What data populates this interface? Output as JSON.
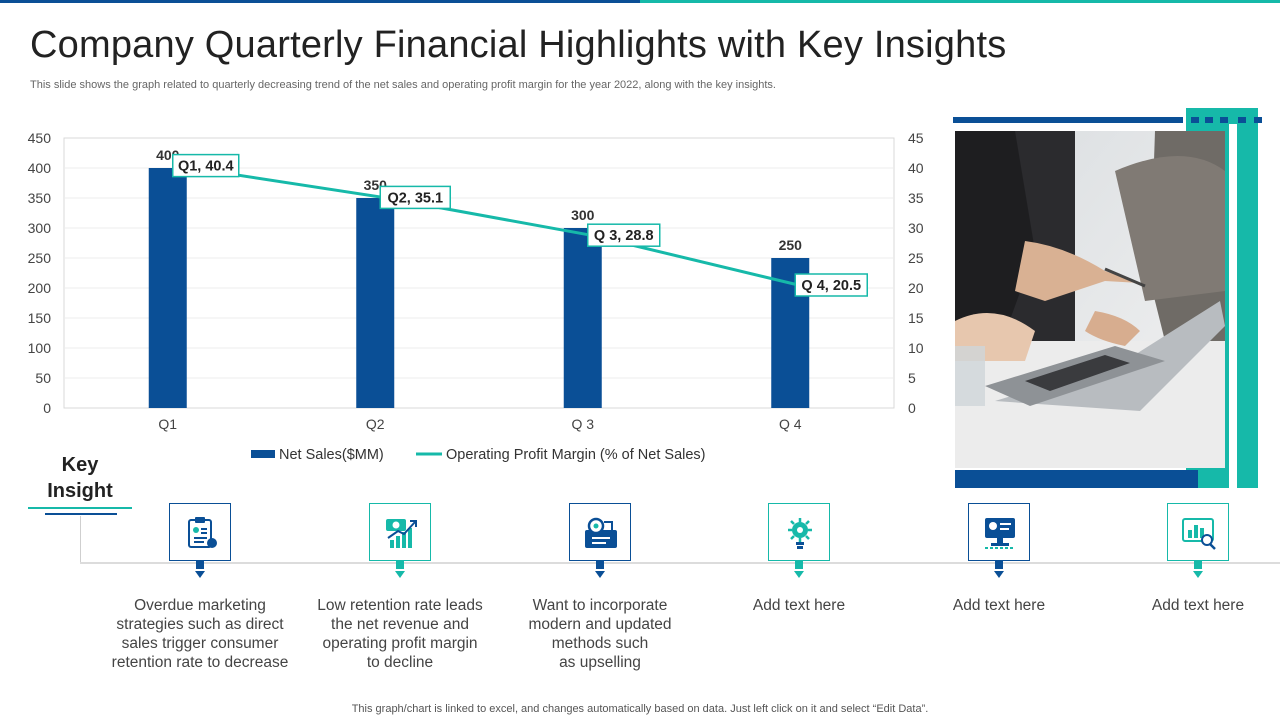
{
  "title": "Company Quarterly Financial Highlights with Key Insights",
  "subtitle": "This slide shows the graph related to quarterly decreasing trend of the net sales and operating profit margin for the year 2022, along with the key insights.",
  "colors": {
    "bar": "#0a4f96",
    "line": "#16b9a9",
    "accent_blue": "#0a4f96",
    "accent_teal": "#16b9a9"
  },
  "chart_data": {
    "type": "bar",
    "categories": [
      "Q1",
      "Q2",
      "Q 3",
      "Q 4"
    ],
    "series": [
      {
        "name": "Net Sales($MM)",
        "type": "bar",
        "axis": "left",
        "values": [
          400,
          350,
          300,
          250
        ],
        "labels": [
          "400",
          "350",
          "300",
          "250"
        ]
      },
      {
        "name": "Operating Profit Margin (% of Net Sales)",
        "type": "line",
        "axis": "right",
        "values": [
          40.4,
          35.1,
          28.8,
          20.5
        ],
        "labels": [
          "Q1, 40.4",
          "Q2, 35.1",
          "Q 3, 28.8",
          "Q 4, 20.5"
        ]
      }
    ],
    "y_left": {
      "ticks": [
        "0",
        "50",
        "100",
        "150",
        "200",
        "250",
        "300",
        "350",
        "400",
        "450"
      ],
      "ylim": [
        0,
        450
      ]
    },
    "y_right": {
      "ticks": [
        "0",
        "5",
        "10",
        "15",
        "20",
        "25",
        "30",
        "35",
        "40",
        "45"
      ],
      "ylim": [
        0,
        45
      ]
    },
    "grid": true,
    "legend_placement": "bottom"
  },
  "key_insight": {
    "label_line1": "Key",
    "label_line2": "Insight",
    "items": [
      {
        "icon": "marketing-plan-icon",
        "lines": [
          "Overdue marketing",
          "strategies such as direct",
          "sales trigger consumer",
          "retention rate to decrease"
        ]
      },
      {
        "icon": "revenue-growth-icon",
        "lines": [
          "Low retention rate leads",
          "the net revenue and",
          "operating profit margin",
          "to decline"
        ]
      },
      {
        "icon": "strategy-methods-icon",
        "lines": [
          "Want to incorporate",
          "modern and updated",
          "methods such",
          "as upselling"
        ]
      },
      {
        "icon": "idea-gear-icon",
        "lines": [
          "Add text here"
        ]
      },
      {
        "icon": "monitor-profile-icon",
        "lines": [
          "Add text here"
        ]
      },
      {
        "icon": "analytics-chart-icon",
        "lines": [
          "Add text here"
        ]
      }
    ]
  },
  "footnote": "This graph/chart is linked to excel,  and changes automatically based on data. Just left click on it and select “Edit Data”."
}
